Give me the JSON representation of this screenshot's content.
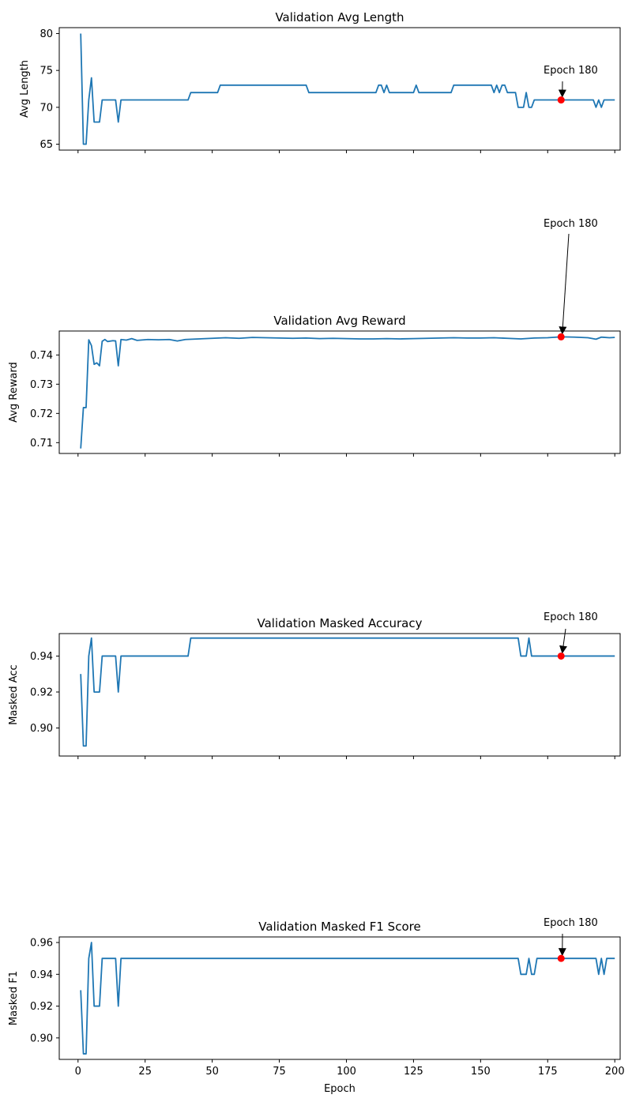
{
  "chart_data": [
    {
      "type": "line",
      "title": "Validation Avg Length",
      "xlabel": "",
      "ylabel": "Avg Length",
      "xlim": [
        -7,
        202
      ],
      "ylim": [
        64.2,
        80.8
      ],
      "yticks": [
        65,
        70,
        75,
        80
      ],
      "ytick_labels": [
        "65",
        "70",
        "75",
        "80"
      ],
      "color": "#1f77b4",
      "series_segments": [
        [
          1,
          80
        ],
        [
          2,
          65
        ],
        [
          3,
          65
        ],
        [
          4,
          71
        ],
        [
          5,
          74
        ],
        [
          6,
          68
        ],
        [
          8,
          68
        ],
        [
          9,
          71
        ],
        [
          14,
          71
        ],
        [
          15,
          68
        ],
        [
          16,
          71
        ],
        [
          41,
          71
        ],
        [
          42,
          72
        ],
        [
          52,
          72
        ],
        [
          53,
          73
        ],
        [
          85,
          73
        ],
        [
          86,
          72
        ],
        [
          111,
          72
        ],
        [
          112,
          73
        ],
        [
          113,
          73
        ],
        [
          114,
          72
        ],
        [
          115,
          73
        ],
        [
          116,
          72
        ],
        [
          125,
          72
        ],
        [
          126,
          73
        ],
        [
          127,
          72
        ],
        [
          139,
          72
        ],
        [
          140,
          73
        ],
        [
          154,
          73
        ],
        [
          155,
          72
        ],
        [
          156,
          73
        ],
        [
          157,
          72
        ],
        [
          158,
          73
        ],
        [
          159,
          73
        ],
        [
          160,
          72
        ],
        [
          163,
          72
        ],
        [
          164,
          70
        ],
        [
          166,
          70
        ],
        [
          167,
          72
        ],
        [
          168,
          70
        ],
        [
          169,
          70
        ],
        [
          170,
          71
        ],
        [
          192,
          71
        ],
        [
          193,
          70
        ],
        [
          194,
          71
        ],
        [
          195,
          70
        ],
        [
          196,
          71
        ],
        [
          200,
          71
        ]
      ],
      "highlight": {
        "x": 180,
        "y": 71,
        "label": "Epoch 180"
      }
    },
    {
      "type": "line",
      "title": "Validation Avg Reward",
      "xlabel": "",
      "ylabel": "Avg Reward",
      "xlim": [
        -7,
        202
      ],
      "ylim": [
        0.7063,
        0.7482
      ],
      "yticks": [
        0.71,
        0.72,
        0.73,
        0.74
      ],
      "ytick_labels": [
        "0.71",
        "0.72",
        "0.73",
        "0.74"
      ],
      "color": "#1f77b4",
      "series_segments": [
        [
          1,
          0.708
        ],
        [
          2,
          0.722
        ],
        [
          3,
          0.722
        ],
        [
          4,
          0.7452
        ],
        [
          5,
          0.7432
        ],
        [
          6,
          0.7368
        ],
        [
          7,
          0.7373
        ],
        [
          8,
          0.7363
        ],
        [
          9,
          0.7447
        ],
        [
          10,
          0.7453
        ],
        [
          11,
          0.7446
        ],
        [
          13,
          0.7449
        ],
        [
          14,
          0.7448
        ],
        [
          15,
          0.7363
        ],
        [
          16,
          0.7453
        ],
        [
          18,
          0.7451
        ],
        [
          20,
          0.7456
        ],
        [
          22,
          0.745
        ],
        [
          26,
          0.7453
        ],
        [
          30,
          0.7452
        ],
        [
          34,
          0.7453
        ],
        [
          37,
          0.7448
        ],
        [
          40,
          0.7453
        ],
        [
          45,
          0.7455
        ],
        [
          50,
          0.7457
        ],
        [
          55,
          0.7459
        ],
        [
          60,
          0.7457
        ],
        [
          65,
          0.746
        ],
        [
          70,
          0.7459
        ],
        [
          75,
          0.7458
        ],
        [
          80,
          0.7457
        ],
        [
          85,
          0.7458
        ],
        [
          90,
          0.7456
        ],
        [
          95,
          0.7457
        ],
        [
          100,
          0.7456
        ],
        [
          105,
          0.7455
        ],
        [
          110,
          0.7455
        ],
        [
          115,
          0.7456
        ],
        [
          120,
          0.7455
        ],
        [
          125,
          0.7456
        ],
        [
          130,
          0.7457
        ],
        [
          135,
          0.7458
        ],
        [
          140,
          0.7459
        ],
        [
          145,
          0.7458
        ],
        [
          150,
          0.7458
        ],
        [
          155,
          0.7459
        ],
        [
          160,
          0.7457
        ],
        [
          165,
          0.7455
        ],
        [
          170,
          0.7458
        ],
        [
          175,
          0.7459
        ],
        [
          180,
          0.7462
        ],
        [
          185,
          0.7461
        ],
        [
          190,
          0.7459
        ],
        [
          193,
          0.7454
        ],
        [
          195,
          0.7461
        ],
        [
          198,
          0.7459
        ],
        [
          200,
          0.746
        ]
      ],
      "highlight": {
        "x": 180,
        "y": 0.7462,
        "label": "Epoch 180"
      }
    },
    {
      "type": "line",
      "title": "Validation Masked Accuracy",
      "xlabel": "",
      "ylabel": "Masked Acc",
      "xlim": [
        -7,
        202
      ],
      "ylim": [
        0.8844,
        0.9525
      ],
      "yticks": [
        0.9,
        0.92,
        0.94
      ],
      "ytick_labels": [
        "0.90",
        "0.92",
        "0.94"
      ],
      "color": "#1f77b4",
      "series_segments": [
        [
          1,
          0.93
        ],
        [
          2,
          0.89
        ],
        [
          3,
          0.89
        ],
        [
          4,
          0.94
        ],
        [
          5,
          0.95
        ],
        [
          6,
          0.92
        ],
        [
          8,
          0.92
        ],
        [
          9,
          0.94
        ],
        [
          14,
          0.94
        ],
        [
          15,
          0.92
        ],
        [
          16,
          0.94
        ],
        [
          41,
          0.94
        ],
        [
          42,
          0.95
        ],
        [
          164,
          0.95
        ],
        [
          165,
          0.94
        ],
        [
          167,
          0.94
        ],
        [
          168,
          0.95
        ],
        [
          169,
          0.94
        ],
        [
          200,
          0.94
        ]
      ],
      "highlight": {
        "x": 180,
        "y": 0.94,
        "label": "Epoch 180"
      }
    },
    {
      "type": "line",
      "title": "Validation Masked F1 Score",
      "xlabel": "Epoch",
      "ylabel": "Masked F1",
      "xlim": [
        -7,
        202
      ],
      "ylim": [
        0.8865,
        0.9635
      ],
      "yticks": [
        0.9,
        0.92,
        0.94,
        0.96
      ],
      "ytick_labels": [
        "0.90",
        "0.92",
        "0.94",
        "0.96"
      ],
      "xticks": [
        0,
        25,
        50,
        75,
        100,
        125,
        150,
        175,
        200
      ],
      "xtick_labels": [
        "0",
        "25",
        "50",
        "75",
        "100",
        "125",
        "150",
        "175",
        "200"
      ],
      "color": "#1f77b4",
      "series_segments": [
        [
          1,
          0.93
        ],
        [
          2,
          0.89
        ],
        [
          3,
          0.89
        ],
        [
          4,
          0.95
        ],
        [
          5,
          0.96
        ],
        [
          6,
          0.92
        ],
        [
          8,
          0.92
        ],
        [
          9,
          0.95
        ],
        [
          14,
          0.95
        ],
        [
          15,
          0.92
        ],
        [
          16,
          0.95
        ],
        [
          164,
          0.95
        ],
        [
          165,
          0.94
        ],
        [
          167,
          0.94
        ],
        [
          168,
          0.95
        ],
        [
          169,
          0.94
        ],
        [
          170,
          0.94
        ],
        [
          171,
          0.95
        ],
        [
          193,
          0.95
        ],
        [
          194,
          0.94
        ],
        [
          195,
          0.95
        ],
        [
          196,
          0.94
        ],
        [
          197,
          0.95
        ],
        [
          200,
          0.95
        ]
      ],
      "highlight": {
        "x": 180,
        "y": 0.95,
        "label": "Epoch 180"
      }
    }
  ]
}
